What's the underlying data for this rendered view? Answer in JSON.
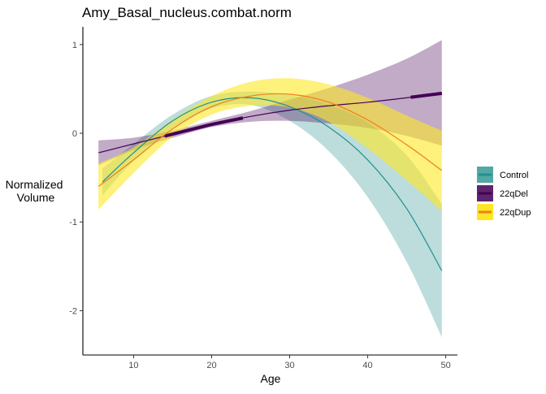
{
  "chart_data": {
    "type": "line",
    "title": "Amy_Basal_nucleus.combat.norm",
    "xlabel": "Age",
    "ylabel_lines": [
      "Normalized",
      "Volume"
    ],
    "xlim": [
      3.5,
      51.5
    ],
    "ylim": [
      -2.5,
      1.2
    ],
    "x_ticks": [
      10,
      20,
      30,
      40,
      50
    ],
    "y_ticks": [
      -2,
      -1,
      0,
      1
    ],
    "grid": false,
    "legend_position": "right",
    "series": [
      {
        "name": "Control",
        "color": "#21908C",
        "band_color": "#21908C",
        "band_opacity": 0.3,
        "x": [
          6,
          10,
          15,
          20,
          25,
          30,
          35,
          40,
          45,
          49.5
        ],
        "y": [
          -0.55,
          -0.22,
          0.14,
          0.35,
          0.4,
          0.3,
          0.07,
          -0.3,
          -0.85,
          -1.55
        ],
        "lower": [
          -0.7,
          -0.31,
          0.06,
          0.28,
          0.32,
          0.14,
          -0.2,
          -0.72,
          -1.45,
          -2.3
        ],
        "upper": [
          -0.4,
          -0.12,
          0.21,
          0.42,
          0.47,
          0.43,
          0.32,
          0.12,
          -0.25,
          -0.8
        ],
        "emphasis_ranges": []
      },
      {
        "name": "22qDel",
        "color": "#440154",
        "band_color": "#440154",
        "band_opacity": 0.33,
        "x": [
          5.5,
          10,
          15,
          20,
          25,
          30,
          35,
          40,
          45,
          49.5
        ],
        "y": [
          -0.22,
          -0.12,
          -0.01,
          0.1,
          0.19,
          0.26,
          0.31,
          0.35,
          0.4,
          0.45
        ],
        "lower": [
          -0.36,
          -0.19,
          -0.05,
          0.07,
          0.13,
          0.14,
          0.11,
          0.06,
          -0.03,
          -0.14
        ],
        "upper": [
          -0.08,
          -0.05,
          0.03,
          0.14,
          0.25,
          0.38,
          0.51,
          0.66,
          0.84,
          1.05
        ],
        "emphasis_ranges": [
          [
            14,
            24
          ],
          [
            45.5,
            49.5
          ]
        ]
      },
      {
        "name": "22qDup",
        "color": "#F07E1B",
        "band_color": "#FDE725",
        "band_opacity": 0.6,
        "x": [
          5.5,
          10,
          15,
          20,
          25,
          30,
          35,
          40,
          45,
          49.5
        ],
        "y": [
          -0.6,
          -0.3,
          0.05,
          0.3,
          0.42,
          0.44,
          0.35,
          0.15,
          -0.13,
          -0.42
        ],
        "lower": [
          -0.86,
          -0.45,
          -0.04,
          0.21,
          0.31,
          0.29,
          0.13,
          -0.17,
          -0.53,
          -0.88
        ],
        "upper": [
          -0.34,
          -0.16,
          0.15,
          0.42,
          0.58,
          0.62,
          0.55,
          0.4,
          0.2,
          0.03
        ],
        "emphasis_ranges": []
      }
    ]
  }
}
